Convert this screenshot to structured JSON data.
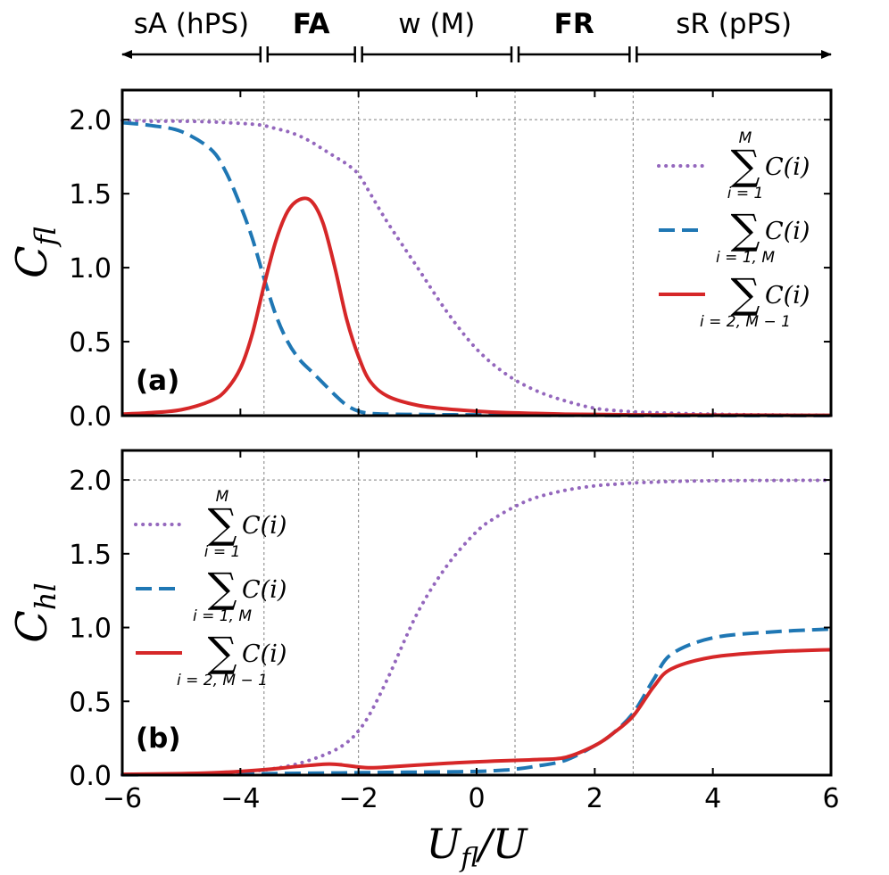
{
  "regions": [
    {
      "label": "sA (hPS)",
      "bold": false,
      "from": -6,
      "to": -3.6
    },
    {
      "label": "FA",
      "bold": true,
      "from": -3.6,
      "to": -2
    },
    {
      "label": "w (M)",
      "bold": false,
      "from": -2,
      "to": 0.65
    },
    {
      "label": "FR",
      "bold": true,
      "from": 0.65,
      "to": 2.65
    },
    {
      "label": "sR (pPS)",
      "bold": false,
      "from": 2.65,
      "to": 6
    }
  ],
  "region_boundaries": [
    -3.6,
    -2,
    0.65,
    2.65
  ],
  "xlabel": {
    "main": "U",
    "sub": "fl",
    "tail": "/U"
  },
  "chart_data": [
    {
      "type": "line",
      "panel": "(a)",
      "ylabel": {
        "main": "C",
        "sub": "fl"
      },
      "xlim": [
        -6,
        6
      ],
      "ylim": [
        0,
        2.2
      ],
      "xticks": [
        -6,
        -4,
        -2,
        0,
        2,
        4,
        6
      ],
      "xtick_labels": [
        "−6",
        "−4",
        "−2",
        "0",
        "2",
        "4",
        "6"
      ],
      "yticks": [
        0,
        0.5,
        1.0,
        1.5,
        2.0
      ],
      "ytick_labels": [
        "0.0",
        "0.5",
        "1.0",
        "1.5",
        "2.0"
      ],
      "hline": 2.0,
      "legend_position": "upper-right",
      "x": [
        -6,
        -5.5,
        -5,
        -4.5,
        -4.25,
        -4,
        -3.8,
        -3.6,
        -3.4,
        -3.2,
        -3,
        -2.8,
        -2.6,
        -2.4,
        -2.2,
        -2,
        -1.8,
        -1.5,
        -1,
        -0.5,
        0,
        0.5,
        1,
        1.5,
        2,
        2.5,
        3,
        4,
        5,
        6
      ],
      "series": [
        {
          "name": "sum_total",
          "legend_sum_top": "M",
          "legend_sum_bottom": "i = 1",
          "legend_text": "C(i)",
          "style": "dotted",
          "color": "#9467bd",
          "values": [
            1.995,
            1.99,
            1.99,
            1.985,
            1.98,
            1.975,
            1.97,
            1.96,
            1.94,
            1.92,
            1.89,
            1.85,
            1.8,
            1.75,
            1.7,
            1.63,
            1.5,
            1.3,
            1.0,
            0.7,
            0.45,
            0.28,
            0.17,
            0.1,
            0.05,
            0.03,
            0.02,
            0.01,
            0.005,
            0.003
          ]
        },
        {
          "name": "sum_edges",
          "legend_sum_top": "",
          "legend_sum_bottom": "i = 1, M",
          "legend_text": "C(i)",
          "style": "dashed",
          "color": "#1f77b4",
          "values": [
            1.98,
            1.96,
            1.92,
            1.8,
            1.65,
            1.42,
            1.2,
            0.93,
            0.68,
            0.5,
            0.38,
            0.3,
            0.22,
            0.14,
            0.07,
            0.03,
            0.015,
            0.01,
            0.008,
            0.006,
            0.005,
            0.004,
            0.003,
            0.002,
            0.002,
            0.001,
            0.001,
            0.001,
            0.001,
            0.001
          ]
        },
        {
          "name": "sum_inner",
          "legend_sum_top": "",
          "legend_sum_bottom": "i = 2, M − 1",
          "legend_text": "C(i)",
          "style": "solid",
          "color": "#d62728",
          "values": [
            0.01,
            0.02,
            0.04,
            0.1,
            0.17,
            0.32,
            0.55,
            0.88,
            1.18,
            1.38,
            1.46,
            1.45,
            1.3,
            1.0,
            0.65,
            0.4,
            0.23,
            0.13,
            0.07,
            0.045,
            0.03,
            0.02,
            0.015,
            0.01,
            0.008,
            0.006,
            0.005,
            0.004,
            0.003,
            0.002
          ]
        }
      ]
    },
    {
      "type": "line",
      "panel": "(b)",
      "ylabel": {
        "main": "C",
        "sub": "hl"
      },
      "xlim": [
        -6,
        6
      ],
      "ylim": [
        0,
        2.2
      ],
      "xticks": [
        -6,
        -4,
        -2,
        0,
        2,
        4,
        6
      ],
      "xtick_labels": [
        "−6",
        "−4",
        "−2",
        "0",
        "2",
        "4",
        "6"
      ],
      "yticks": [
        0,
        0.5,
        1.0,
        1.5,
        2.0
      ],
      "ytick_labels": [
        "0.0",
        "0.5",
        "1.0",
        "1.5",
        "2.0"
      ],
      "hline": 2.0,
      "legend_position": "upper-left",
      "x": [
        -6,
        -5,
        -4.5,
        -4,
        -3.5,
        -3,
        -2.5,
        -2.2,
        -2,
        -1.8,
        -1.5,
        -1,
        -0.5,
        0,
        0.3,
        0.65,
        1,
        1.5,
        2,
        2.3,
        2.65,
        3,
        3.3,
        4,
        5,
        6
      ],
      "series": [
        {
          "name": "sum_total",
          "legend_sum_top": "M",
          "legend_sum_bottom": "i = 1",
          "legend_text": "C(i)",
          "style": "dotted",
          "color": "#9467bd",
          "values": [
            0.003,
            0.005,
            0.01,
            0.02,
            0.04,
            0.08,
            0.15,
            0.22,
            0.3,
            0.42,
            0.66,
            1.1,
            1.42,
            1.65,
            1.74,
            1.82,
            1.88,
            1.93,
            1.96,
            1.97,
            1.98,
            1.985,
            1.99,
            1.995,
            1.997,
            1.998
          ]
        },
        {
          "name": "sum_edges",
          "legend_sum_top": "",
          "legend_sum_bottom": "i = 1, M",
          "legend_text": "C(i)",
          "style": "dashed",
          "color": "#1f77b4",
          "values": [
            0.002,
            0.004,
            0.006,
            0.008,
            0.01,
            0.012,
            0.014,
            0.015,
            0.016,
            0.017,
            0.018,
            0.02,
            0.022,
            0.025,
            0.03,
            0.04,
            0.06,
            0.1,
            0.2,
            0.28,
            0.42,
            0.65,
            0.82,
            0.93,
            0.97,
            0.99
          ]
        },
        {
          "name": "sum_inner",
          "legend_sum_top": "",
          "legend_sum_bottom": "i = 2, M − 1",
          "legend_text": "C(i)",
          "style": "solid",
          "color": "#d62728",
          "values": [
            0.005,
            0.01,
            0.015,
            0.025,
            0.04,
            0.06,
            0.075,
            0.065,
            0.055,
            0.05,
            0.055,
            0.068,
            0.08,
            0.09,
            0.095,
            0.1,
            0.105,
            0.12,
            0.2,
            0.28,
            0.4,
            0.6,
            0.72,
            0.8,
            0.835,
            0.85
          ]
        }
      ]
    }
  ]
}
